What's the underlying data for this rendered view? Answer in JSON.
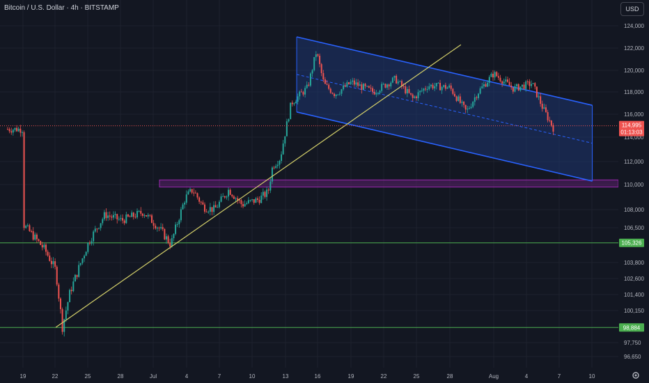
{
  "title": "Bitcoin / U.S. Dollar · 4h · BITSTAMP",
  "currency_button": "USD",
  "settings_icon": "gear-icon",
  "colors": {
    "background": "#131722",
    "up": "#26a69a",
    "down": "#ef5350",
    "axis_text": "#b2b5be",
    "channel_line": "#2962ff",
    "channel_fill": "#1e3470",
    "trendline": "#d4d06a",
    "zone_stroke": "#9c27b0",
    "zone_fill": "#5a1f6b",
    "support_line": "#4caf50",
    "price_line": "#ef5350"
  },
  "chart_data": {
    "type": "candlestick",
    "x_tick_labels": [
      "19",
      "22",
      "25",
      "28",
      "Jul",
      "4",
      "7",
      "10",
      "13",
      "16",
      "19",
      "22",
      "25",
      "28",
      "Aug",
      "4",
      "7",
      "10"
    ],
    "y_tick_labels": [
      "124,000",
      "122,000",
      "120,000",
      "118,000",
      "116,000",
      "114,000",
      "112,000",
      "110,000",
      "108,000",
      "106,500",
      "103,800",
      "102,600",
      "101,400",
      "100,150",
      "97,750",
      "96,650"
    ],
    "last_price": "114,995",
    "countdown": "01:13:03",
    "level_labels": [
      "105,326",
      "98,884"
    ],
    "support_levels": [
      105326,
      98884
    ],
    "zone": {
      "low": 109800,
      "high": 110400
    },
    "trendline": {
      "from": {
        "x": "Jun 22",
        "y": 98900
      },
      "to": {
        "x": "Jul 29",
        "y": 122300
      }
    },
    "channel": {
      "upper": {
        "from": {
          "x": "Jul 14",
          "y": 123000
        },
        "to": {
          "x": "Aug 10",
          "y": 116800
        }
      },
      "lower": {
        "from": {
          "x": "Jul 14",
          "y": 116200
        },
        "to": {
          "x": "Aug 10",
          "y": 110300
        }
      }
    },
    "grid": true
  }
}
